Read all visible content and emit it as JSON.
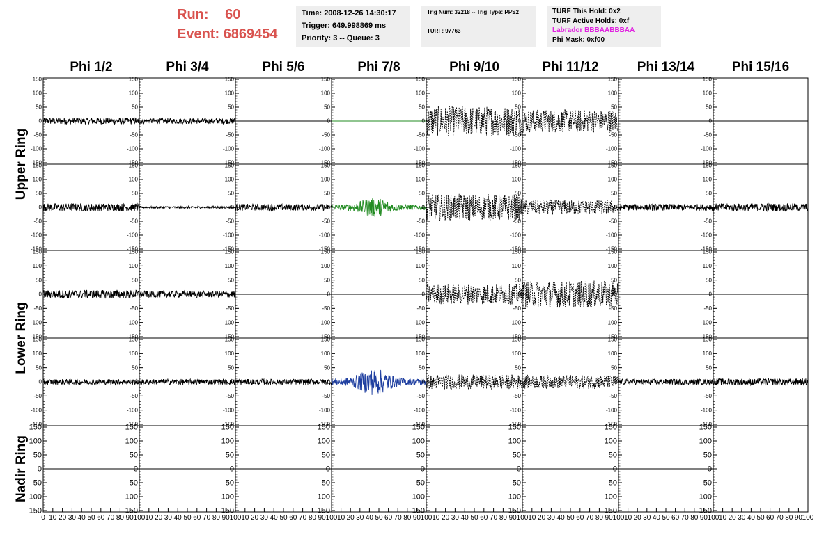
{
  "run": {
    "run_label": "Run:",
    "run_value": "60",
    "event_label": "Event:",
    "event_value": "6869454",
    "color": "#d9534f"
  },
  "time_box": {
    "time": "Time: 2008-12-26 14:30:17",
    "trigger": "Trigger: 649.998869 ms",
    "priority": "Priority: 3 -- Queue: 3"
  },
  "trig_box": {
    "trig_line": "Trig Num: 32218 -- Trig Type: PPS2",
    "turf_line": "TURF: 97763"
  },
  "turf_box": {
    "this_hold": "TURF This Hold: 0x2",
    "active_holds": "TURF Active Holds: 0xf",
    "labrador": "Labrador BBBAABBBAA",
    "labrador_color": "#e020e0",
    "phi_mask": "Phi Mask: 0xf00"
  },
  "phi_headers": [
    "Phi 1/2",
    "Phi 3/4",
    "Phi 5/6",
    "Phi 7/8",
    "Phi 9/10",
    "Phi 11/12",
    "Phi 13/14",
    "Phi 15/16"
  ],
  "ring_labels": [
    "Upper Ring",
    "Lower Ring",
    "Nadir Ring"
  ],
  "chart_data": {
    "type": "line",
    "ylim": [
      -150,
      150
    ],
    "xlim": [
      0,
      100
    ],
    "yticks": [
      150,
      100,
      50,
      0,
      -50,
      -100,
      -150
    ],
    "xticks": [
      0,
      10,
      20,
      30,
      40,
      50,
      60,
      70,
      80,
      90,
      100
    ],
    "colors": {
      "trigger_phi": "#228b22",
      "lower_trigger_phi": "#1f3fa0",
      "default": "#000000"
    },
    "rows": [
      {
        "row": 1,
        "amplitudes": [
          12,
          10,
          0,
          0,
          45,
          35,
          0,
          0
        ],
        "styles": [
          "solid",
          "solid",
          "flat",
          "flat-green",
          "dashed",
          "dashed",
          "flat",
          "flat"
        ]
      },
      {
        "row": 2,
        "amplitudes": [
          14,
          4,
          12,
          30,
          40,
          22,
          12,
          14
        ],
        "styles": [
          "solid",
          "solid",
          "solid",
          "green",
          "dashed",
          "dashed",
          "solid",
          "solid"
        ]
      },
      {
        "row": 3,
        "amplitudes": [
          15,
          12,
          0,
          0,
          30,
          40,
          0,
          0
        ],
        "styles": [
          "solid",
          "solid",
          "flat",
          "flat",
          "dashed",
          "dashed",
          "flat",
          "flat"
        ]
      },
      {
        "row": 4,
        "amplitudes": [
          10,
          10,
          10,
          40,
          22,
          20,
          10,
          12
        ],
        "styles": [
          "solid",
          "solid",
          "solid",
          "blue",
          "dashed",
          "dashed",
          "solid",
          "solid"
        ]
      },
      {
        "row": 5,
        "amplitudes": [
          0,
          0,
          0,
          0,
          0,
          0,
          0,
          0
        ],
        "styles": [
          "flat",
          "flat",
          "flat",
          "flat",
          "flat",
          "flat",
          "flat",
          "empty"
        ]
      }
    ]
  }
}
